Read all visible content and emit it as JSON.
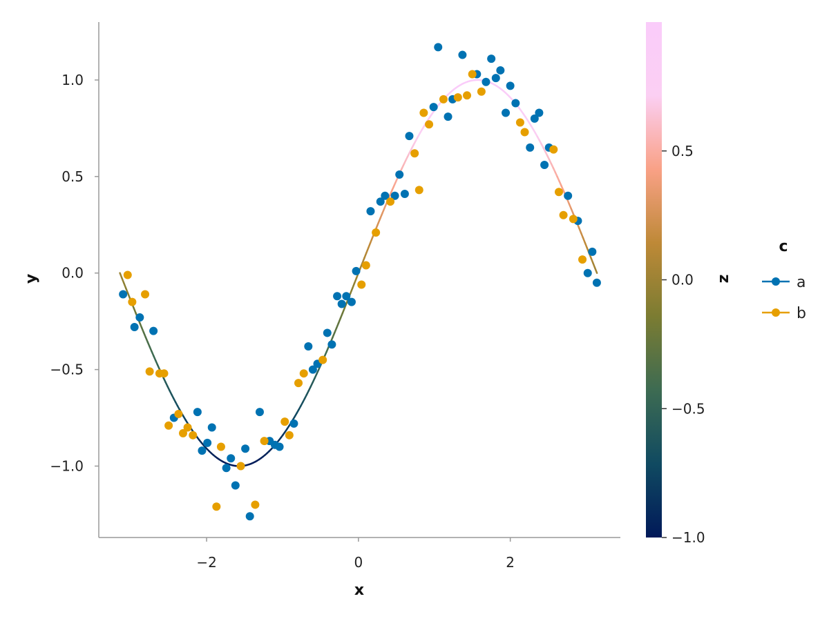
{
  "chart_data": {
    "type": "scatter",
    "xlabel": "x",
    "ylabel": "y",
    "xlim": [
      -3.42,
      3.45
    ],
    "ylim": [
      -1.37,
      1.3
    ],
    "xticks": [
      -2,
      0,
      2
    ],
    "xtick_labels": [
      "−2",
      "0",
      "2"
    ],
    "yticks": [
      -1.0,
      -0.5,
      0.0,
      0.5,
      1.0
    ],
    "ytick_labels": [
      "−1.0",
      "−0.5",
      "0.0",
      "0.5",
      "1.0"
    ],
    "grid": false,
    "line": {
      "function": "sin(x)",
      "x_range": [
        -3.14159,
        3.14159
      ],
      "color_variable": "z",
      "color_note": "line colour follows z = sin(x) along the batlow colour map"
    },
    "colorbar": {
      "label": "z",
      "range": [
        -1.0,
        1.0
      ],
      "ticks": [
        -1.0,
        -0.5,
        0.0,
        0.5
      ],
      "tick_labels": [
        "−1.0",
        "−0.5",
        "0.0",
        "0.5"
      ],
      "colormap": [
        "#011959",
        "#104A61",
        "#3D6B52",
        "#7B7C32",
        "#BE8937",
        "#F9A186",
        "#FBCFF3",
        "#FACCFA"
      ]
    },
    "legend": {
      "title": "c",
      "placement": "right",
      "entries": [
        {
          "name": "a",
          "color": "#0072B2"
        },
        {
          "name": "b",
          "color": "#E69F00"
        }
      ]
    },
    "series": [
      {
        "name": "a",
        "color": "#0072B2",
        "points": [
          [
            -3.1,
            -0.11
          ],
          [
            -2.95,
            -0.28
          ],
          [
            -2.88,
            -0.23
          ],
          [
            -2.7,
            -0.3
          ],
          [
            -2.43,
            -0.75
          ],
          [
            -2.12,
            -0.72
          ],
          [
            -2.06,
            -0.92
          ],
          [
            -1.99,
            -0.88
          ],
          [
            -1.93,
            -0.8
          ],
          [
            -1.74,
            -1.01
          ],
          [
            -1.68,
            -0.96
          ],
          [
            -1.62,
            -1.1
          ],
          [
            -1.49,
            -0.91
          ],
          [
            -1.43,
            -1.26
          ],
          [
            -1.3,
            -0.72
          ],
          [
            -1.17,
            -0.87
          ],
          [
            -1.1,
            -0.89
          ],
          [
            -1.04,
            -0.9
          ],
          [
            -0.85,
            -0.78
          ],
          [
            -0.66,
            -0.38
          ],
          [
            -0.6,
            -0.5
          ],
          [
            -0.54,
            -0.47
          ],
          [
            -0.41,
            -0.31
          ],
          [
            -0.35,
            -0.37
          ],
          [
            -0.28,
            -0.12
          ],
          [
            -0.22,
            -0.16
          ],
          [
            -0.16,
            -0.12
          ],
          [
            -0.09,
            -0.15
          ],
          [
            -0.03,
            0.01
          ],
          [
            0.16,
            0.32
          ],
          [
            0.29,
            0.37
          ],
          [
            0.35,
            0.4
          ],
          [
            0.48,
            0.4
          ],
          [
            0.54,
            0.51
          ],
          [
            0.61,
            0.41
          ],
          [
            0.67,
            0.71
          ],
          [
            0.99,
            0.86
          ],
          [
            1.05,
            1.17
          ],
          [
            1.18,
            0.81
          ],
          [
            1.24,
            0.9
          ],
          [
            1.37,
            1.13
          ],
          [
            1.56,
            1.03
          ],
          [
            1.68,
            0.99
          ],
          [
            1.75,
            1.11
          ],
          [
            1.81,
            1.01
          ],
          [
            1.87,
            1.05
          ],
          [
            1.94,
            0.83
          ],
          [
            2.0,
            0.97
          ],
          [
            2.07,
            0.88
          ],
          [
            2.26,
            0.65
          ],
          [
            2.32,
            0.8
          ],
          [
            2.38,
            0.83
          ],
          [
            2.45,
            0.56
          ],
          [
            2.51,
            0.65
          ],
          [
            2.76,
            0.4
          ],
          [
            2.89,
            0.27
          ],
          [
            3.02,
            0.0
          ],
          [
            3.08,
            0.11
          ],
          [
            3.14,
            -0.05
          ]
        ]
      },
      {
        "name": "b",
        "color": "#E69F00",
        "points": [
          [
            -3.04,
            -0.01
          ],
          [
            -2.98,
            -0.15
          ],
          [
            -2.81,
            -0.11
          ],
          [
            -2.75,
            -0.51
          ],
          [
            -2.62,
            -0.52
          ],
          [
            -2.56,
            -0.52
          ],
          [
            -2.5,
            -0.79
          ],
          [
            -2.37,
            -0.73
          ],
          [
            -2.31,
            -0.83
          ],
          [
            -2.25,
            -0.8
          ],
          [
            -2.18,
            -0.84
          ],
          [
            -1.87,
            -1.21
          ],
          [
            -1.81,
            -0.9
          ],
          [
            -1.55,
            -1.0
          ],
          [
            -1.36,
            -1.2
          ],
          [
            -1.24,
            -0.87
          ],
          [
            -0.97,
            -0.77
          ],
          [
            -0.91,
            -0.84
          ],
          [
            -0.79,
            -0.57
          ],
          [
            -0.72,
            -0.52
          ],
          [
            -0.47,
            -0.45
          ],
          [
            0.04,
            -0.06
          ],
          [
            0.1,
            0.04
          ],
          [
            0.23,
            0.21
          ],
          [
            0.42,
            0.37
          ],
          [
            0.74,
            0.62
          ],
          [
            0.8,
            0.43
          ],
          [
            0.86,
            0.83
          ],
          [
            0.93,
            0.77
          ],
          [
            1.12,
            0.9
          ],
          [
            1.31,
            0.91
          ],
          [
            1.43,
            0.92
          ],
          [
            1.5,
            1.03
          ],
          [
            1.62,
            0.94
          ],
          [
            2.13,
            0.78
          ],
          [
            2.19,
            0.73
          ],
          [
            2.57,
            0.64
          ],
          [
            2.64,
            0.42
          ],
          [
            2.7,
            0.3
          ],
          [
            2.83,
            0.28
          ],
          [
            2.95,
            0.07
          ]
        ]
      }
    ]
  }
}
